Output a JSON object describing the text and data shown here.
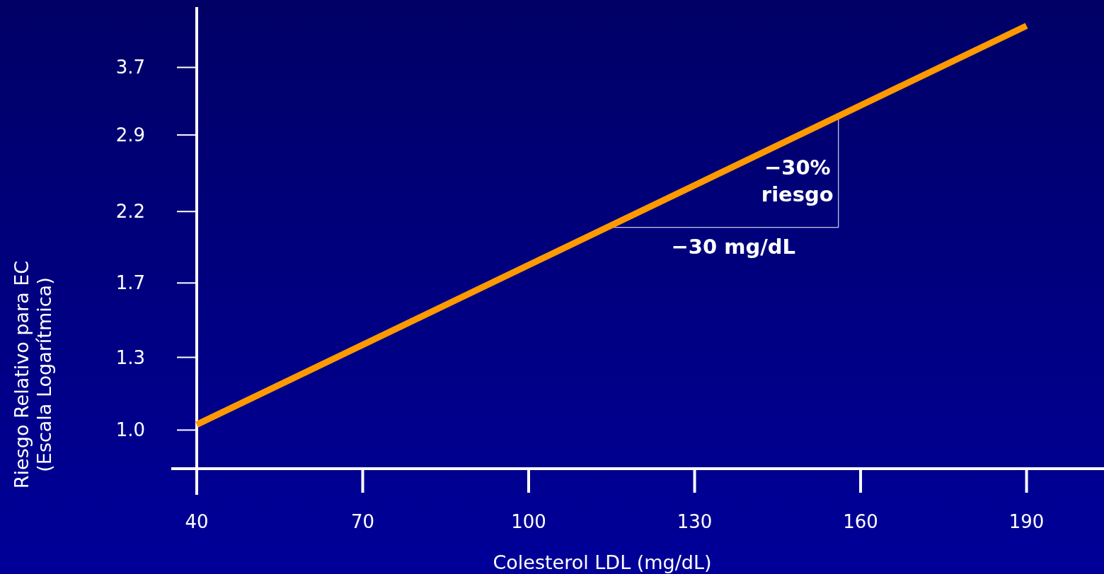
{
  "chart_data": {
    "type": "line",
    "xlabel": "Colesterol LDL (mg/dL)",
    "ylabel": "Riesgo Relativo para EC\n(Escala Logarítmica)",
    "series": [
      {
        "color": "#ff9900",
        "x": [
          40,
          190
        ],
        "values": [
          1.02,
          4.3
        ]
      }
    ],
    "xlim": [
      40,
      204
    ],
    "xticks": [
      40,
      70,
      100,
      130,
      160,
      190
    ],
    "ylim": [
      0.87,
      4.6
    ],
    "yticks": [
      {
        "value": 1,
        "label": "1.0"
      },
      1.3,
      1.7,
      2.2,
      2.9,
      3.7
    ],
    "log": "y",
    "grid": false,
    "marker": "none",
    "line_style": "solid",
    "annotations": [
      {
        "text": "−30%\nriesgo",
        "x": 156,
        "y": 3.1
      },
      "−30 mg/dL"
    ]
  }
}
